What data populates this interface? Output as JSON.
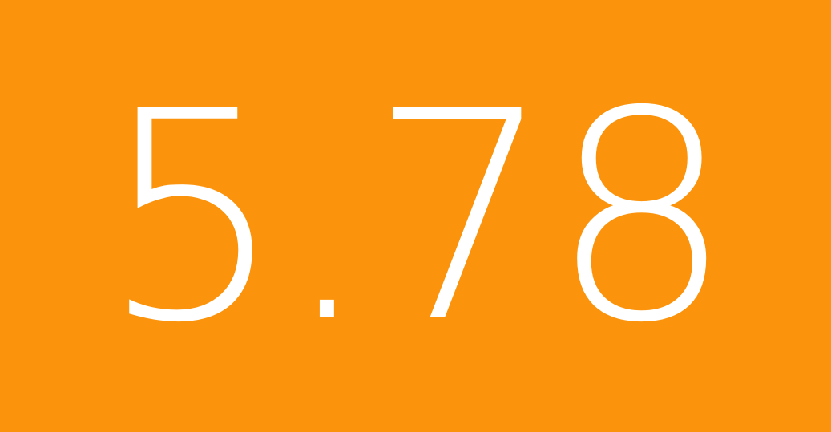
{
  "tile": {
    "value": "5.78",
    "background_color": "#FB940C",
    "text_color": "#FFFFFF"
  }
}
